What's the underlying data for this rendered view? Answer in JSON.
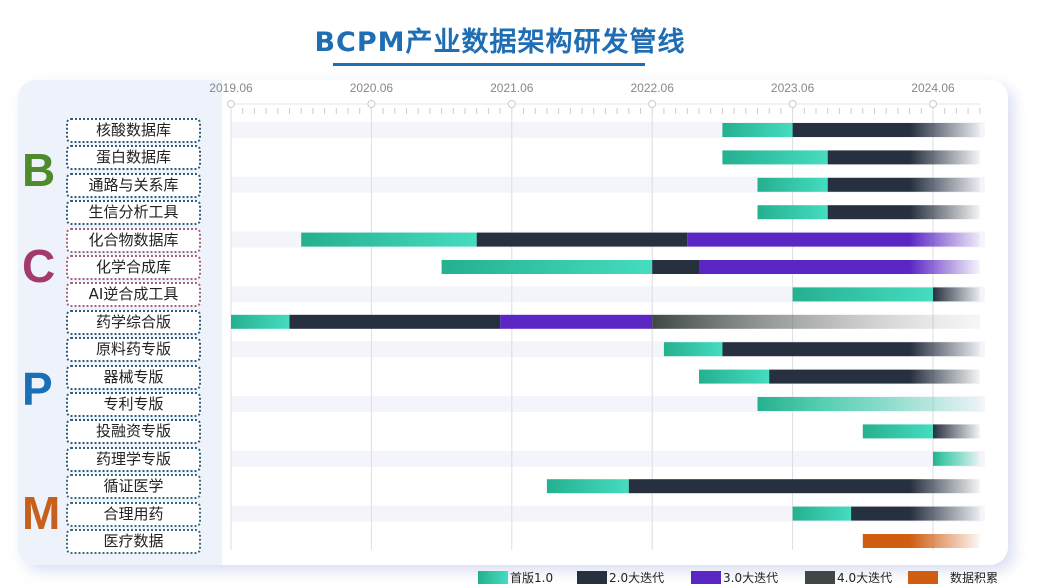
{
  "chart_data": {
    "type": "gantt",
    "title": "BCPM产业数据架构研发管线",
    "x_ticks": [
      "2019.06",
      "2020.06",
      "2021.06",
      "2022.06",
      "2023.06",
      "2024.06"
    ],
    "x_range": [
      "2019.06",
      "2024.10"
    ],
    "grid": true,
    "legend_position": "bottom",
    "phases": [
      {
        "key": "v1",
        "name": "首版1.0",
        "color": "#2fc4a4"
      },
      {
        "key": "v2",
        "name": "2.0大迭代",
        "color": "#26303f"
      },
      {
        "key": "v3",
        "name": "3.0大迭代",
        "color": "#5b27c4"
      },
      {
        "key": "v4",
        "name": "4.0大迭代",
        "color": "#3f4747"
      },
      {
        "key": "data",
        "name": "数据积累",
        "color": "#cf5d12"
      }
    ],
    "groups": [
      {
        "letter": "B",
        "color": "#4f8a2b",
        "border": "#2d5a7a"
      },
      {
        "letter": "C",
        "color": "#a33a6b",
        "border": "#a0607f"
      },
      {
        "letter": "P",
        "color": "#1a6fb5",
        "border": "#2d5a7a"
      },
      {
        "letter": "M",
        "color": "#c8601d",
        "border": "#3a6a80"
      }
    ],
    "rows": [
      {
        "group": 0,
        "label": "核酸数据库",
        "segments": [
          [
            "v1",
            "2022.12",
            "2023.06"
          ],
          [
            "v2",
            "2023.06",
            "2024.10"
          ]
        ],
        "fade": true
      },
      {
        "group": 0,
        "label": "蛋白数据库",
        "segments": [
          [
            "v1",
            "2022.12",
            "2023.09"
          ],
          [
            "v2",
            "2023.09",
            "2024.10"
          ]
        ],
        "fade": true
      },
      {
        "group": 0,
        "label": "通路与关系库",
        "segments": [
          [
            "v1",
            "2023.03",
            "2023.09"
          ],
          [
            "v2",
            "2023.09",
            "2024.10"
          ]
        ],
        "fade": true
      },
      {
        "group": 0,
        "label": "生信分析工具",
        "segments": [
          [
            "v1",
            "2023.03",
            "2023.09"
          ],
          [
            "v2",
            "2023.09",
            "2024.10"
          ]
        ],
        "fade": true
      },
      {
        "group": 1,
        "label": "化合物数据库",
        "segments": [
          [
            "v1",
            "2019.12",
            "2021.03"
          ],
          [
            "v2",
            "2021.03",
            "2022.09"
          ],
          [
            "v3",
            "2022.09",
            "2024.10"
          ]
        ],
        "fade": true
      },
      {
        "group": 1,
        "label": "化学合成库",
        "segments": [
          [
            "v1",
            "2020.12",
            "2022.06"
          ],
          [
            "v2",
            "2022.06",
            "2022.10"
          ],
          [
            "v3",
            "2022.10",
            "2024.10"
          ]
        ],
        "fade": true
      },
      {
        "group": 1,
        "label": "AI逆合成工具",
        "segments": [
          [
            "v1",
            "2023.06",
            "2024.06"
          ],
          [
            "v2",
            "2024.06",
            "2024.10"
          ]
        ],
        "fade": true
      },
      {
        "group": 2,
        "label": "药学综合版",
        "segments": [
          [
            "v1",
            "2019.06",
            "2019.11"
          ],
          [
            "v2",
            "2019.11",
            "2021.05"
          ],
          [
            "v3",
            "2021.05",
            "2022.06"
          ],
          [
            "v4",
            "2022.06",
            "2024.10"
          ]
        ],
        "fade": true
      },
      {
        "group": 2,
        "label": "原料药专版",
        "segments": [
          [
            "v1",
            "2022.07",
            "2022.12"
          ],
          [
            "v2",
            "2022.12",
            "2024.10"
          ]
        ],
        "fade": true
      },
      {
        "group": 2,
        "label": "器械专版",
        "segments": [
          [
            "v1",
            "2022.10",
            "2023.04"
          ],
          [
            "v2",
            "2023.04",
            "2024.10"
          ]
        ],
        "fade": true
      },
      {
        "group": 2,
        "label": "专利专版",
        "segments": [
          [
            "v1",
            "2023.03",
            "2024.10"
          ]
        ],
        "fade": true
      },
      {
        "group": 2,
        "label": "投融资专版",
        "segments": [
          [
            "v1",
            "2023.12",
            "2024.06"
          ],
          [
            "v2",
            "2024.06",
            "2024.10"
          ]
        ],
        "fade": true
      },
      {
        "group": 2,
        "label": "药理学专版",
        "segments": [
          [
            "v1",
            "2024.06",
            "2024.10"
          ]
        ],
        "fade": true
      },
      {
        "group": 3,
        "label": "循证医学",
        "segments": [
          [
            "v1",
            "2021.09",
            "2022.04"
          ],
          [
            "v2",
            "2022.04",
            "2024.10"
          ]
        ],
        "fade": true
      },
      {
        "group": 3,
        "label": "合理用药",
        "segments": [
          [
            "v1",
            "2023.06",
            "2023.11"
          ],
          [
            "v2",
            "2023.11",
            "2024.10"
          ]
        ],
        "fade": true
      },
      {
        "group": 3,
        "label": "医疗数据",
        "segments": [
          [
            "data",
            "2023.12",
            "2024.10"
          ]
        ],
        "fade": true
      }
    ]
  }
}
